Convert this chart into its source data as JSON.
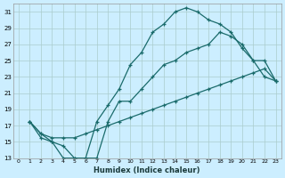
{
  "xlabel": "Humidex (Indice chaleur)",
  "background_color": "#cceeff",
  "grid_color": "#aacccc",
  "line_color": "#1a6b6b",
  "xlim_min": -0.5,
  "xlim_max": 23.5,
  "ylim_min": 13,
  "ylim_max": 32,
  "yticks": [
    13,
    15,
    17,
    19,
    21,
    23,
    25,
    27,
    29,
    31
  ],
  "xticks": [
    0,
    1,
    2,
    3,
    4,
    5,
    6,
    7,
    8,
    9,
    10,
    11,
    12,
    13,
    14,
    15,
    16,
    17,
    18,
    19,
    20,
    21,
    22,
    23
  ],
  "line1_x": [
    1,
    2,
    3,
    4,
    5,
    6,
    7,
    8,
    9,
    10,
    11,
    12,
    13,
    14,
    15,
    16,
    17,
    18,
    19,
    20,
    21,
    22,
    23
  ],
  "line1_y": [
    17.5,
    16.0,
    15.0,
    13.0,
    13.0,
    13.0,
    17.5,
    19.5,
    21.5,
    24.5,
    26.0,
    28.5,
    29.5,
    31.0,
    31.5,
    31.0,
    30.0,
    29.5,
    28.5,
    26.5,
    25.0,
    23.0,
    22.5
  ],
  "line2_x": [
    1,
    2,
    3,
    4,
    5,
    6,
    7,
    8,
    9,
    10,
    11,
    12,
    13,
    14,
    15,
    16,
    17,
    18,
    19,
    20,
    21,
    22,
    23
  ],
  "line2_y": [
    17.5,
    15.5,
    15.0,
    14.5,
    13.0,
    13.0,
    13.0,
    17.5,
    20.0,
    20.0,
    21.5,
    23.0,
    24.5,
    25.0,
    26.0,
    26.5,
    27.0,
    28.5,
    28.0,
    27.0,
    25.0,
    25.0,
    22.5
  ],
  "line3_x": [
    1,
    2,
    3,
    4,
    5,
    6,
    7,
    8,
    9,
    10,
    11,
    12,
    13,
    14,
    15,
    16,
    17,
    18,
    19,
    20,
    21,
    22,
    23
  ],
  "line3_y": [
    17.5,
    16.0,
    15.5,
    15.5,
    15.5,
    16.0,
    16.5,
    17.0,
    17.5,
    18.0,
    18.5,
    19.0,
    19.5,
    20.0,
    20.5,
    21.0,
    21.5,
    22.0,
    22.5,
    23.0,
    23.5,
    24.0,
    22.5
  ]
}
